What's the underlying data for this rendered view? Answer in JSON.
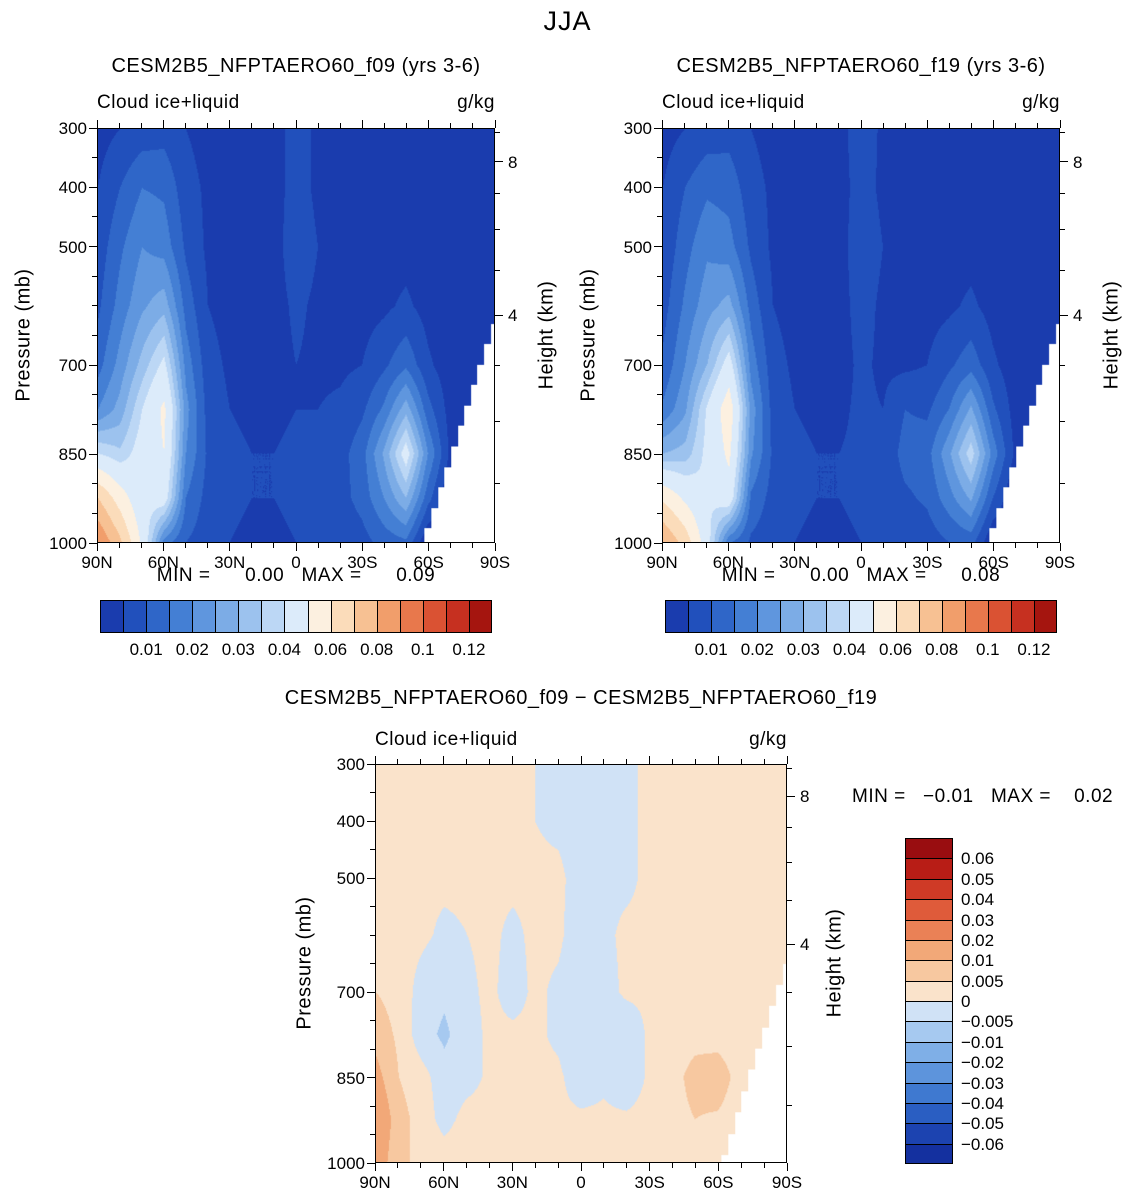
{
  "title": "JJA",
  "panels": [
    {
      "title": "CESM2B5_NFPTAERO60_f09 (yrs 3-6)",
      "field_label": "Cloud ice+liquid",
      "units": "g/kg",
      "ylabel": "Pressure (mb)",
      "ylabel_right": "Height (km)",
      "stats": "MIN =      0.00   MAX =      0.09"
    },
    {
      "title": "CESM2B5_NFPTAERO60_f19 (yrs 3-6)",
      "field_label": "Cloud ice+liquid",
      "units": "g/kg",
      "ylabel": "Pressure (mb)",
      "ylabel_right": "Height (km)",
      "stats": "MIN =      0.00   MAX =      0.08"
    },
    {
      "title": "CESM2B5_NFPTAERO60_f09 − CESM2B5_NFPTAERO60_f19",
      "field_label": "Cloud ice+liquid",
      "units": "g/kg",
      "ylabel": "Pressure (mb)",
      "ylabel_right": "Height (km)",
      "stats": "MIN =   −0.01   MAX =    0.02"
    }
  ],
  "chart_data": [
    {
      "type": "heatmap",
      "title": "CESM2B5_NFPTAERO60_f09 (yrs 3-6)",
      "season": "JJA",
      "variable": "Cloud ice+liquid",
      "units": "g/kg",
      "min": 0.0,
      "max": 0.09,
      "x": {
        "name": "latitude",
        "range": [
          90,
          -90
        ],
        "ticks": [
          90,
          60,
          30,
          0,
          -30,
          -60,
          -90
        ],
        "tick_labels": [
          "90N",
          "60N",
          "30N",
          "0",
          "30S",
          "60S",
          "90S"
        ],
        "minor_step": 10
      },
      "y": {
        "name": "pressure_mb",
        "range": [
          300,
          1000
        ],
        "ticks": [
          300,
          400,
          500,
          700,
          850,
          1000
        ],
        "minor": [
          350,
          450,
          550,
          600,
          650,
          750,
          800,
          900,
          950
        ]
      },
      "y2": {
        "name": "height_km",
        "tick_labels": [
          "8",
          "4"
        ],
        "tick_pressures": [
          357,
          616
        ],
        "minor_pressures": [
          899,
          795,
          701,
          540,
          472,
          411,
          308
        ]
      },
      "lat": [
        90,
        80,
        70,
        60,
        50,
        40,
        30,
        20,
        10,
        0,
        -10,
        -20,
        -30,
        -40,
        -50,
        -60,
        -70,
        -80,
        -90
      ],
      "plev": [
        300,
        400,
        500,
        600,
        700,
        775,
        850,
        925,
        1000
      ],
      "values": [
        [
          0.003,
          0.005,
          0.007,
          0.008,
          0.005,
          0.003,
          0.002,
          0.002,
          0.003,
          0.007,
          0.004,
          0.002,
          0.001,
          0.001,
          0.001,
          0.001,
          0.001,
          0.0,
          0.0
        ],
        [
          0.005,
          0.01,
          0.015,
          0.014,
          0.007,
          0.004,
          0.002,
          0.002,
          0.003,
          0.007,
          0.004,
          0.003,
          0.002,
          0.002,
          0.002,
          0.001,
          0.001,
          0.0,
          0.0
        ],
        [
          0.007,
          0.014,
          0.02,
          0.018,
          0.009,
          0.004,
          0.003,
          0.002,
          0.003,
          0.008,
          0.005,
          0.003,
          0.002,
          0.003,
          0.003,
          0.002,
          0.001,
          0.0,
          0.0
        ],
        [
          0.009,
          0.017,
          0.024,
          0.028,
          0.013,
          0.005,
          0.003,
          0.003,
          0.003,
          0.006,
          0.004,
          0.003,
          0.003,
          0.004,
          0.006,
          0.003,
          0.001,
          0.0,
          0.0
        ],
        [
          0.013,
          0.022,
          0.032,
          0.042,
          0.018,
          0.007,
          0.004,
          0.003,
          0.003,
          0.005,
          0.004,
          0.004,
          0.005,
          0.009,
          0.014,
          0.006,
          0.002,
          0.0,
          0.0
        ],
        [
          0.02,
          0.027,
          0.04,
          0.052,
          0.022,
          0.008,
          0.005,
          0.004,
          0.004,
          0.005,
          0.005,
          0.006,
          0.009,
          0.016,
          0.028,
          0.012,
          0.003,
          0.0,
          0.0
        ],
        [
          0.04,
          0.036,
          0.044,
          0.05,
          0.02,
          0.009,
          0.006,
          0.005,
          0.005,
          0.006,
          0.006,
          0.008,
          0.013,
          0.026,
          0.044,
          0.02,
          0.004,
          0.0,
          0.0
        ],
        [
          0.07,
          0.055,
          0.042,
          0.045,
          0.015,
          0.008,
          0.006,
          0.005,
          0.005,
          0.006,
          0.006,
          0.008,
          0.012,
          0.02,
          0.03,
          0.012,
          0.0,
          0.0,
          0.0
        ],
        [
          0.09,
          0.072,
          0.048,
          0.018,
          0.01,
          0.007,
          0.005,
          0.004,
          0.004,
          0.005,
          0.005,
          0.006,
          0.008,
          0.012,
          0.014,
          0.0,
          0.0,
          0.0,
          0.0
        ]
      ],
      "levels": [
        0.005,
        0.01,
        0.015,
        0.02,
        0.025,
        0.03,
        0.035,
        0.04,
        0.05,
        0.06,
        0.07,
        0.08,
        0.09,
        0.1,
        0.11,
        0.12
      ],
      "colors": [
        "#1a3cae",
        "#2150bc",
        "#2f66c8",
        "#447fd4",
        "#5f96de",
        "#7cace6",
        "#9cc2ee",
        "#bcd7f5",
        "#dcebfa",
        "#fcf0e0",
        "#fbdcba",
        "#f7c193",
        "#f19e6b",
        "#e8784c",
        "#da5233",
        "#c63020",
        "#a5150f"
      ],
      "colorbar_labels": [
        "0.01",
        "0.02",
        "0.03",
        "0.04",
        "0.06",
        "0.08",
        "0.1",
        "0.12"
      ],
      "colorbar_label_cells": [
        2,
        4,
        6,
        8,
        10,
        12,
        14,
        16
      ],
      "mask": {
        "lat_start": -58,
        "ps_90s": 630
      }
    },
    {
      "type": "heatmap",
      "title": "CESM2B5_NFPTAERO60_f19 (yrs 3-6)",
      "season": "JJA",
      "variable": "Cloud ice+liquid",
      "units": "g/kg",
      "min": 0.0,
      "max": 0.08,
      "x": {
        "name": "latitude",
        "range": [
          90,
          -90
        ],
        "ticks": [
          90,
          60,
          30,
          0,
          -30,
          -60,
          -90
        ],
        "tick_labels": [
          "90N",
          "60N",
          "30N",
          "0",
          "30S",
          "60S",
          "90S"
        ],
        "minor_step": 10
      },
      "y": {
        "name": "pressure_mb",
        "range": [
          300,
          1000
        ],
        "ticks": [
          300,
          400,
          500,
          700,
          850,
          1000
        ],
        "minor": [
          350,
          450,
          550,
          600,
          650,
          750,
          800,
          900,
          950
        ]
      },
      "y2": {
        "name": "height_km",
        "tick_labels": [
          "8",
          "4"
        ],
        "tick_pressures": [
          357,
          616
        ],
        "minor_pressures": [
          899,
          795,
          701,
          540,
          472,
          411,
          308
        ]
      },
      "lat": [
        90,
        80,
        70,
        60,
        50,
        40,
        30,
        20,
        10,
        0,
        -10,
        -20,
        -30,
        -40,
        -50,
        -60,
        -70,
        -80,
        -90
      ],
      "plev": [
        300,
        400,
        500,
        600,
        700,
        775,
        850,
        925,
        1000
      ],
      "values": [
        [
          0.003,
          0.005,
          0.007,
          0.008,
          0.005,
          0.003,
          0.002,
          0.002,
          0.003,
          0.008,
          0.004,
          0.002,
          0.001,
          0.001,
          0.001,
          0.001,
          0.001,
          0.0,
          0.0
        ],
        [
          0.005,
          0.01,
          0.014,
          0.013,
          0.007,
          0.004,
          0.002,
          0.002,
          0.003,
          0.007,
          0.004,
          0.003,
          0.002,
          0.002,
          0.002,
          0.001,
          0.001,
          0.0,
          0.0
        ],
        [
          0.006,
          0.013,
          0.019,
          0.017,
          0.009,
          0.004,
          0.003,
          0.002,
          0.003,
          0.008,
          0.005,
          0.003,
          0.002,
          0.003,
          0.003,
          0.002,
          0.001,
          0.0,
          0.0
        ],
        [
          0.008,
          0.016,
          0.023,
          0.027,
          0.013,
          0.005,
          0.003,
          0.003,
          0.003,
          0.007,
          0.004,
          0.003,
          0.003,
          0.004,
          0.006,
          0.003,
          0.001,
          0.0,
          0.0
        ],
        [
          0.011,
          0.02,
          0.03,
          0.044,
          0.018,
          0.007,
          0.004,
          0.003,
          0.003,
          0.006,
          0.004,
          0.004,
          0.005,
          0.009,
          0.013,
          0.006,
          0.002,
          0.0,
          0.0
        ],
        [
          0.016,
          0.024,
          0.041,
          0.056,
          0.023,
          0.008,
          0.005,
          0.004,
          0.004,
          0.006,
          0.005,
          0.01,
          0.009,
          0.015,
          0.026,
          0.011,
          0.003,
          0.0,
          0.0
        ],
        [
          0.03,
          0.032,
          0.042,
          0.052,
          0.021,
          0.009,
          0.006,
          0.005,
          0.005,
          0.006,
          0.006,
          0.012,
          0.013,
          0.024,
          0.038,
          0.018,
          0.004,
          0.0,
          0.0
        ],
        [
          0.058,
          0.048,
          0.04,
          0.046,
          0.014,
          0.008,
          0.006,
          0.005,
          0.005,
          0.006,
          0.006,
          0.009,
          0.011,
          0.018,
          0.026,
          0.01,
          0.0,
          0.0,
          0.0
        ],
        [
          0.08,
          0.066,
          0.044,
          0.016,
          0.009,
          0.007,
          0.005,
          0.004,
          0.004,
          0.005,
          0.005,
          0.006,
          0.007,
          0.01,
          0.012,
          0.0,
          0.0,
          0.0,
          0.0
        ]
      ],
      "levels": [
        0.005,
        0.01,
        0.015,
        0.02,
        0.025,
        0.03,
        0.035,
        0.04,
        0.05,
        0.06,
        0.07,
        0.08,
        0.09,
        0.1,
        0.11,
        0.12
      ],
      "colors": [
        "#1a3cae",
        "#2150bc",
        "#2f66c8",
        "#447fd4",
        "#5f96de",
        "#7cace6",
        "#9cc2ee",
        "#bcd7f5",
        "#dcebfa",
        "#fcf0e0",
        "#fbdcba",
        "#f7c193",
        "#f19e6b",
        "#e8784c",
        "#da5233",
        "#c63020",
        "#a5150f"
      ],
      "colorbar_labels": [
        "0.01",
        "0.02",
        "0.03",
        "0.04",
        "0.06",
        "0.08",
        "0.1",
        "0.12"
      ],
      "colorbar_label_cells": [
        2,
        4,
        6,
        8,
        10,
        12,
        14,
        16
      ],
      "mask": {
        "lat_start": -58,
        "ps_90s": 630
      }
    },
    {
      "type": "heatmap",
      "title": "CESM2B5_NFPTAERO60_f09 − CESM2B5_NFPTAERO60_f19",
      "season": "JJA",
      "variable": "Cloud ice+liquid difference",
      "units": "g/kg",
      "min": -0.01,
      "max": 0.02,
      "x": {
        "name": "latitude",
        "range": [
          90,
          -90
        ],
        "ticks": [
          90,
          60,
          30,
          0,
          -30,
          -60,
          -90
        ],
        "tick_labels": [
          "90N",
          "60N",
          "30N",
          "0",
          "30S",
          "60S",
          "90S"
        ],
        "minor_step": 10
      },
      "y": {
        "name": "pressure_mb",
        "range": [
          300,
          1000
        ],
        "ticks": [
          300,
          400,
          500,
          700,
          850,
          1000
        ],
        "minor": [
          350,
          450,
          550,
          600,
          650,
          750,
          800,
          900,
          950
        ]
      },
      "y2": {
        "name": "height_km",
        "tick_labels": [
          "8",
          "4"
        ],
        "tick_pressures": [
          357,
          616
        ],
        "minor_pressures": [
          899,
          795,
          701,
          540,
          472,
          411,
          308
        ]
      },
      "lat": [
        90,
        80,
        70,
        60,
        50,
        40,
        30,
        20,
        10,
        0,
        -10,
        -20,
        -30,
        -40,
        -50,
        -60,
        -70,
        -80,
        -90
      ],
      "plev": [
        300,
        400,
        500,
        600,
        700,
        775,
        850,
        925,
        1000
      ],
      "values": [
        [
          0.001,
          0.001,
          0.001,
          0.001,
          0.001,
          0.001,
          0.001,
          0.0,
          -0.001,
          -0.002,
          -0.001,
          -0.001,
          0.001,
          0.001,
          0.001,
          0.001,
          0.001,
          0.001,
          0.001
        ],
        [
          0.002,
          0.001,
          0.001,
          0.001,
          0.001,
          0.001,
          0.001,
          0.0,
          -0.001,
          -0.002,
          -0.001,
          -0.001,
          0.001,
          0.001,
          0.001,
          0.001,
          0.001,
          0.001,
          0.001
        ],
        [
          0.002,
          0.002,
          0.001,
          0.001,
          0.001,
          0.001,
          0.001,
          0.001,
          0.001,
          -0.002,
          -0.001,
          -0.001,
          0.001,
          0.001,
          0.001,
          0.001,
          0.001,
          0.001,
          0.001
        ],
        [
          0.003,
          0.002,
          0.001,
          -0.001,
          0.0,
          0.001,
          -0.001,
          0.001,
          0.001,
          -0.003,
          -0.001,
          0.001,
          0.001,
          0.001,
          0.001,
          0.001,
          0.001,
          0.001,
          0.001
        ],
        [
          0.005,
          0.003,
          -0.002,
          -0.004,
          -0.001,
          0.001,
          -0.002,
          0.001,
          -0.001,
          -0.004,
          -0.002,
          0.001,
          0.001,
          0.002,
          0.002,
          0.001,
          0.001,
          0.001,
          0.001
        ],
        [
          0.008,
          0.004,
          -0.003,
          -0.006,
          -0.002,
          0.001,
          0.001,
          0.001,
          -0.001,
          -0.005,
          -0.003,
          -0.004,
          0.001,
          0.002,
          0.003,
          0.002,
          0.001,
          0.001,
          0.001
        ],
        [
          0.012,
          0.005,
          0.002,
          -0.003,
          -0.002,
          0.001,
          0.001,
          0.001,
          0.001,
          -0.003,
          -0.001,
          -0.004,
          0.001,
          0.003,
          0.007,
          0.009,
          0.002,
          0.001,
          0.001
        ],
        [
          0.016,
          0.007,
          0.003,
          -0.002,
          0.002,
          0.002,
          0.001,
          0.001,
          0.001,
          0.001,
          0.001,
          0.001,
          0.002,
          0.003,
          0.005,
          0.004,
          0.001,
          0.001,
          0.001
        ],
        [
          0.014,
          0.006,
          0.004,
          0.003,
          0.004,
          0.002,
          0.001,
          0.001,
          0.001,
          0.001,
          0.001,
          0.001,
          0.001,
          0.002,
          0.003,
          0.001,
          0.001,
          0.001,
          0.001
        ]
      ],
      "levels": [
        -0.06,
        -0.05,
        -0.04,
        -0.03,
        -0.02,
        -0.01,
        -0.005,
        0,
        0.005,
        0.01,
        0.02,
        0.03,
        0.04,
        0.05,
        0.06
      ],
      "colors": [
        "#14309f",
        "#1c43b0",
        "#2a5ec2",
        "#3f79d0",
        "#5d94dc",
        "#7fafe7",
        "#a6c9f0",
        "#d0e2f6",
        "#fae3cb",
        "#f7c8a0",
        "#f2a878",
        "#ea8156",
        "#df5b3a",
        "#cf3a26",
        "#b81d16",
        "#990d10"
      ],
      "colorbar_labels": [
        "0.06",
        "0.05",
        "0.04",
        "0.03",
        "0.02",
        "0.01",
        "0.005",
        "0",
        "−0.005",
        "−0.01",
        "−0.02",
        "−0.03",
        "−0.04",
        "−0.05",
        "−0.06"
      ],
      "mask": {
        "lat_start": -62,
        "ps_90s": 650
      }
    }
  ]
}
